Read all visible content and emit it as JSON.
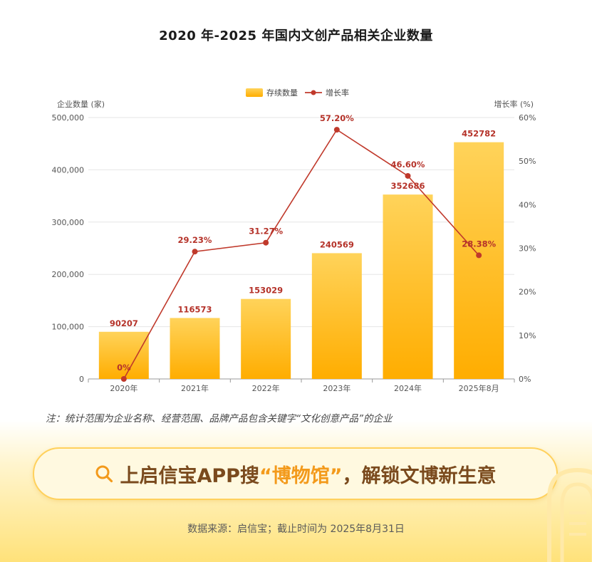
{
  "title": "2020 年-2025 年国内文创产品相关企业数量",
  "note": "注：统计范围为企业名称、经营范围、品牌产品包含关键字“文化创意产品”的企业",
  "banner": {
    "icon": "search-icon",
    "part1": "上启信宝APP搜",
    "highlight": "“博物馆”",
    "part2": "，解锁文博新生意"
  },
  "source": "数据来源：启信宝；截止时间为 2025年8月31日",
  "chart_data": {
    "type": "bar",
    "categories": [
      "2020年",
      "2021年",
      "2022年",
      "2023年",
      "2024年",
      "2025年8月"
    ],
    "series": [
      {
        "name": "存续数量",
        "type": "bar",
        "axis": "left",
        "values": [
          90207,
          116573,
          153029,
          240569,
          352686,
          452782
        ],
        "labels": [
          "90207",
          "116573",
          "153029",
          "240569",
          "352686",
          "452782"
        ],
        "color": "#ffb400"
      },
      {
        "name": "增长率",
        "type": "line",
        "axis": "right",
        "values": [
          0,
          29.23,
          31.27,
          57.2,
          46.6,
          28.38
        ],
        "labels": [
          "0%",
          "29.23%",
          "31.27%",
          "57.20%",
          "46.60%",
          "28.38%"
        ],
        "color": "#c0392b"
      }
    ],
    "left_axis": {
      "title": "企业数量 (家)",
      "min": 0,
      "max": 500000,
      "ticks": [
        0,
        100000,
        200000,
        300000,
        400000,
        500000
      ],
      "tick_labels": [
        "0",
        "100,000",
        "200,000",
        "300,000",
        "400,000",
        "500,000"
      ]
    },
    "right_axis": {
      "title": "增长率 (%)",
      "min": 0,
      "max": 60,
      "ticks": [
        0,
        10,
        20,
        30,
        40,
        50,
        60
      ],
      "tick_labels": [
        "0%",
        "10%",
        "20%",
        "30%",
        "40%",
        "50%",
        "60%"
      ]
    },
    "grid": true,
    "legend": "top-center",
    "label_color": "#b5332a"
  }
}
